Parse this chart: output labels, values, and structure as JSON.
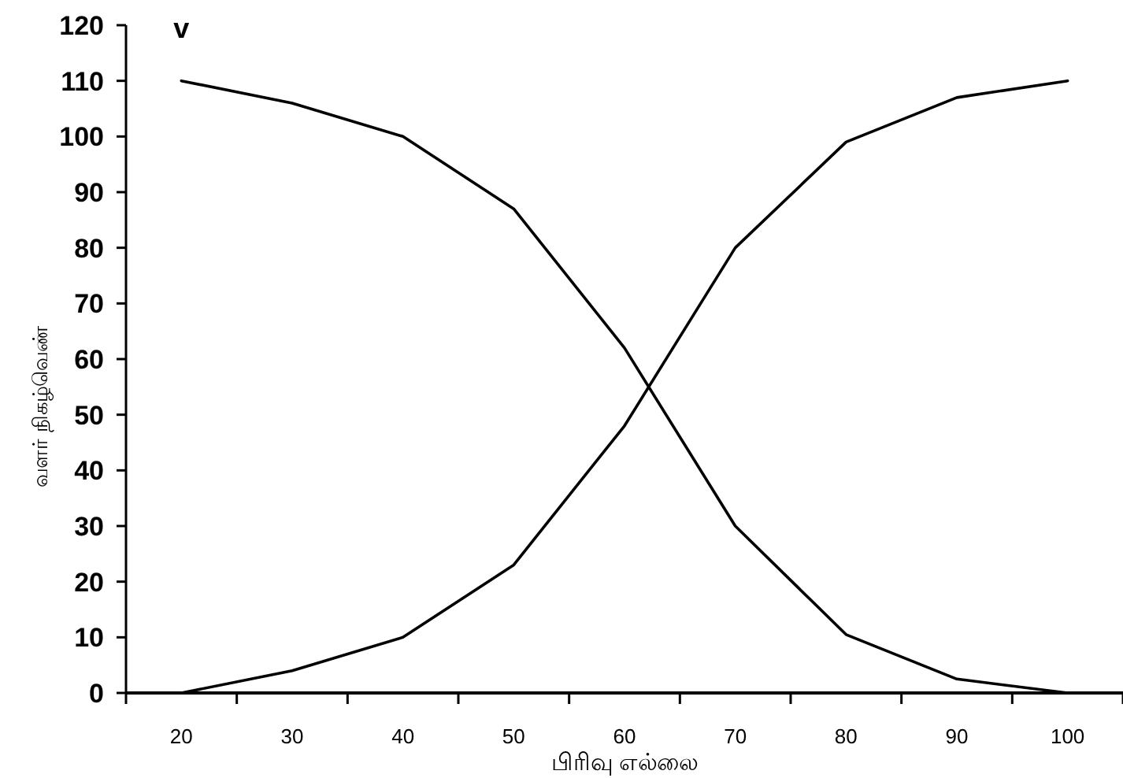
{
  "chart_data": {
    "type": "line",
    "xlabel": "பிரிவு எல்லை",
    "ylabel": "வளர் நிகழ்வெண்",
    "annotations": [
      "v"
    ],
    "categories": [
      "20",
      "30",
      "40",
      "50",
      "60",
      "70",
      "80",
      "90",
      "100"
    ],
    "series": [
      {
        "color": "#000000",
        "values": [
          110,
          106,
          100,
          87,
          62,
          30,
          10.5,
          2.5,
          0
        ]
      },
      {
        "color": "#000000",
        "values": [
          0,
          4,
          10,
          23,
          48,
          80,
          99,
          107,
          110
        ]
      }
    ],
    "ylim": [
      0,
      120
    ],
    "yticks": [
      0,
      10,
      20,
      30,
      40,
      50,
      60,
      70,
      80,
      90,
      100,
      110,
      120
    ],
    "grid": false,
    "marker": "none",
    "line_style": "solid"
  }
}
